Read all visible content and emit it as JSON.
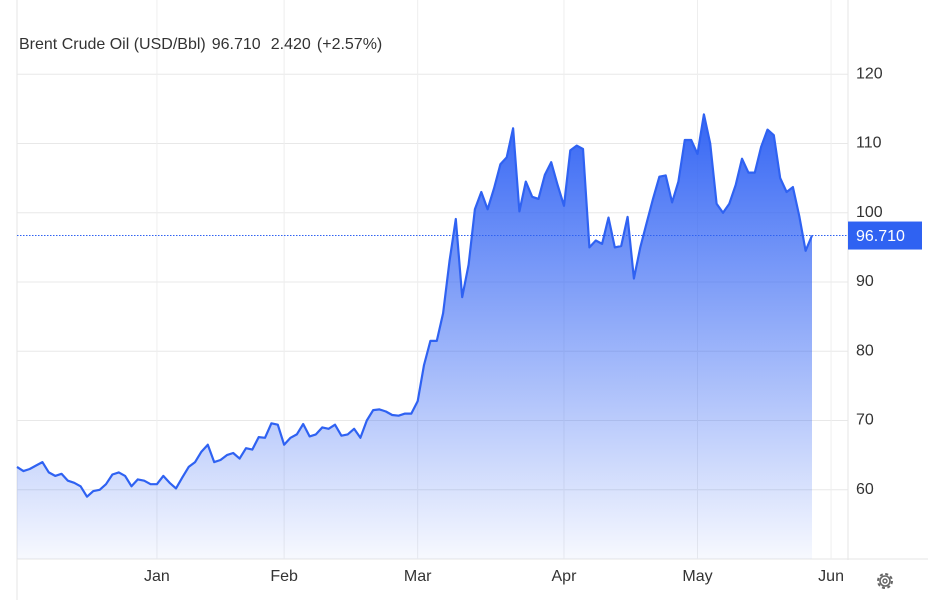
{
  "chart_data": {
    "type": "area",
    "title": "Brent Crude Oil (USD/Bbl)",
    "price": "96.710",
    "change": "2.420",
    "change_pct": "(+2.57%)",
    "color": "#2f62f2",
    "change_color": "#2bb52b",
    "grid": true,
    "ylim": [
      50,
      130
    ],
    "yticks": [
      60,
      70,
      80,
      90,
      100,
      110,
      120
    ],
    "categories": [
      null,
      null,
      null,
      null,
      null,
      null,
      null,
      null,
      null,
      null,
      null,
      null,
      null,
      null,
      null,
      null,
      null,
      null,
      null,
      null,
      null,
      null,
      "Jan",
      null,
      null,
      null,
      null,
      null,
      null,
      null,
      null,
      null,
      null,
      null,
      null,
      null,
      null,
      null,
      null,
      null,
      null,
      null,
      "Feb",
      null,
      null,
      null,
      null,
      null,
      null,
      null,
      null,
      null,
      null,
      null,
      null,
      null,
      null,
      null,
      null,
      null,
      null,
      null,
      null,
      "Mar",
      null,
      null,
      null,
      null,
      null,
      null,
      null,
      null,
      null,
      null,
      null,
      null,
      null,
      null,
      null,
      null,
      null,
      null,
      null,
      null,
      null,
      null,
      "Apr",
      null,
      null,
      null,
      null,
      null,
      null,
      null,
      null,
      null,
      null,
      null,
      null,
      null,
      null,
      null,
      null,
      null,
      null,
      null,
      null,
      "May",
      null,
      null,
      null,
      null,
      null,
      null,
      null,
      null,
      null,
      null,
      null,
      null,
      null,
      null,
      null,
      null,
      null,
      null,
      null,
      null,
      "Jun"
    ],
    "values": [
      63.3,
      62.7,
      63.0,
      63.5,
      64.0,
      62.5,
      62.0,
      62.3,
      61.3,
      61.0,
      60.5,
      59.0,
      59.8,
      60.0,
      60.8,
      62.2,
      62.5,
      62.0,
      60.5,
      61.5,
      61.3,
      60.8,
      60.8,
      62.0,
      61.0,
      60.2,
      61.8,
      63.3,
      64.0,
      65.5,
      66.5,
      64.0,
      64.3,
      65.0,
      65.3,
      64.5,
      66.0,
      65.8,
      67.6,
      67.5,
      69.6,
      69.4,
      66.5,
      67.5,
      68.0,
      69.5,
      67.7,
      68.0,
      69.0,
      68.8,
      69.4,
      67.8,
      68.0,
      68.8,
      67.5,
      70.0,
      71.5,
      71.6,
      71.3,
      70.8,
      70.7,
      71.0,
      71.0,
      72.8,
      78.0,
      81.5,
      81.5,
      85.5,
      93.0,
      99.1,
      87.8,
      92.5,
      100.5,
      103.0,
      100.5,
      103.5,
      107.0,
      108.0,
      112.2,
      100.2,
      104.5,
      102.3,
      102.0,
      105.5,
      107.3,
      104.0,
      101.0,
      109.0,
      109.7,
      109.2,
      95.0,
      96.0,
      95.5,
      99.3,
      95.0,
      95.2,
      99.4,
      90.5,
      95.0,
      98.5,
      102.0,
      105.2,
      105.4,
      101.5,
      104.5,
      110.5,
      110.5,
      108.5,
      114.2,
      110.0,
      101.3,
      100.0,
      101.3,
      104.0,
      107.8,
      105.8,
      105.8,
      109.5,
      112.0,
      111.2,
      105.0,
      103.0,
      103.7,
      99.5,
      94.5,
      96.71,
      null,
      null,
      null
    ]
  }
}
